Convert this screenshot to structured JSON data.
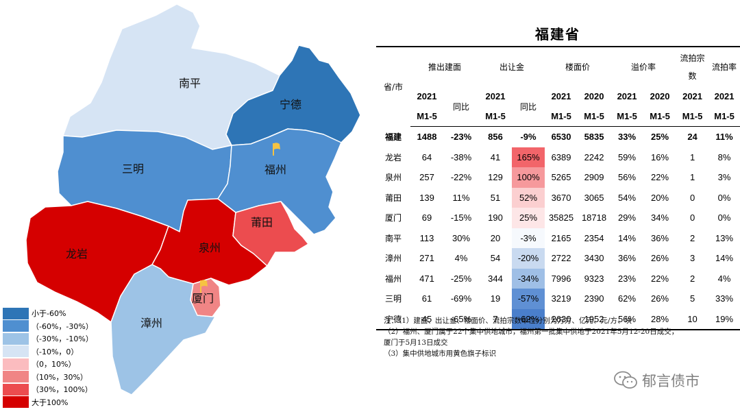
{
  "map": {
    "colors": {
      "lt_neg60": "#2e75b6",
      "neg60_neg30": "#4f8fd0",
      "neg30_neg10": "#9dc3e6",
      "neg10_0": "#d6e4f4",
      "p0_10": "#fbbcbf",
      "p10_30": "#f08585",
      "p30_100": "#ec4c4f",
      "gt100": "#d50000"
    },
    "regions": [
      {
        "name": "南平",
        "fill": "#d6e4f4"
      },
      {
        "name": "宁德",
        "fill": "#2e75b6"
      },
      {
        "name": "三明",
        "fill": "#4f8fd0"
      },
      {
        "name": "福州",
        "fill": "#4f8fd0"
      },
      {
        "name": "龙岩",
        "fill": "#d50000"
      },
      {
        "name": "泉州",
        "fill": "#d50000"
      },
      {
        "name": "莆田",
        "fill": "#ec4c4f"
      },
      {
        "name": "厦门",
        "fill": "#f08585"
      },
      {
        "name": "漳州",
        "fill": "#9dc3e6"
      }
    ],
    "flag_icon": "yellow-flag-icon",
    "flag_color": "#f6c342"
  },
  "legend": [
    {
      "label": "小于-60%",
      "color": "#2e75b6"
    },
    {
      "label": "（-60%，-30%）",
      "color": "#4f8fd0"
    },
    {
      "label": "（-30%，-10%）",
      "color": "#9dc3e6"
    },
    {
      "label": "（-10%，0）",
      "color": "#d6e4f4"
    },
    {
      "label": "（0，10%）",
      "color": "#fbbcbf"
    },
    {
      "label": "（10%，30%）",
      "color": "#f08585"
    },
    {
      "label": "（30%，100%）",
      "color": "#ec4c4f"
    },
    {
      "label": "大于100%",
      "color": "#d50000"
    }
  ],
  "table": {
    "title": "福建省",
    "header_province": "省/市",
    "groups": [
      "推出建面",
      "出让金",
      "楼面价",
      "溢价率",
      "流拍宗数",
      "流拍率"
    ],
    "subheaders": [
      "2021",
      "同比",
      "2021",
      "同比",
      "2021",
      "2020",
      "2021",
      "2020",
      "2021",
      "2021"
    ],
    "subheader_period": "M1-5",
    "rows": [
      {
        "name": "福建",
        "area": "1488",
        "area_yoy": "-23%",
        "fee": "856",
        "fee_yoy": "-9%",
        "price21": "6530",
        "price20": "5835",
        "prem21": "33%",
        "prem20": "25%",
        "failed": "24",
        "fail_rate": "11%",
        "yoy_color": "#ffffff"
      },
      {
        "name": "龙岩",
        "area": "64",
        "area_yoy": "-38%",
        "fee": "41",
        "fee_yoy": "165%",
        "price21": "6389",
        "price20": "2242",
        "prem21": "59%",
        "prem20": "16%",
        "failed": "1",
        "fail_rate": "8%",
        "yoy_color": "#f2656a"
      },
      {
        "name": "泉州",
        "area": "257",
        "area_yoy": "-22%",
        "fee": "129",
        "fee_yoy": "100%",
        "price21": "5265",
        "price20": "2909",
        "prem21": "56%",
        "prem20": "22%",
        "failed": "1",
        "fail_rate": "3%",
        "yoy_color": "#f6999c"
      },
      {
        "name": "莆田",
        "area": "139",
        "area_yoy": "11%",
        "fee": "51",
        "fee_yoy": "52%",
        "price21": "3670",
        "price20": "3065",
        "prem21": "54%",
        "prem20": "20%",
        "failed": "0",
        "fail_rate": "0%",
        "yoy_color": "#fbcfd0"
      },
      {
        "name": "厦门",
        "area": "69",
        "area_yoy": "-15%",
        "fee": "190",
        "fee_yoy": "25%",
        "price21": "35825",
        "price20": "18718",
        "prem21": "29%",
        "prem20": "34%",
        "failed": "0",
        "fail_rate": "0%",
        "yoy_color": "#fde6e7"
      },
      {
        "name": "南平",
        "area": "113",
        "area_yoy": "30%",
        "fee": "20",
        "fee_yoy": "-3%",
        "price21": "2165",
        "price20": "2354",
        "prem21": "14%",
        "prem20": "36%",
        "failed": "2",
        "fail_rate": "13%",
        "yoy_color": "#f6f9fd"
      },
      {
        "name": "漳州",
        "area": "271",
        "area_yoy": "4%",
        "fee": "54",
        "fee_yoy": "-20%",
        "price21": "2722",
        "price20": "3430",
        "prem21": "36%",
        "prem20": "26%",
        "failed": "3",
        "fail_rate": "14%",
        "yoy_color": "#c9daf0"
      },
      {
        "name": "福州",
        "area": "471",
        "area_yoy": "-25%",
        "fee": "344",
        "fee_yoy": "-34%",
        "price21": "7996",
        "price20": "9323",
        "prem21": "23%",
        "prem20": "22%",
        "failed": "2",
        "fail_rate": "4%",
        "yoy_color": "#9fbfe6"
      },
      {
        "name": "三明",
        "area": "61",
        "area_yoy": "-69%",
        "fee": "19",
        "fee_yoy": "-57%",
        "price21": "3219",
        "price20": "2390",
        "prem21": "62%",
        "prem20": "26%",
        "failed": "5",
        "fail_rate": "33%",
        "yoy_color": "#5f90d4"
      },
      {
        "name": "宁德",
        "area": "45",
        "area_yoy": "-65%",
        "fee": "7",
        "fee_yoy": "-62%",
        "price21": "2630",
        "price20": "1952",
        "prem21": "56%",
        "prem20": "28%",
        "failed": "10",
        "fail_rate": "19%",
        "yoy_color": "#4a7fcb"
      }
    ]
  },
  "notes": [
    "注：（1）建面、出让金、楼面价、流拍宗数单位分别为万方、亿元、元/方、块",
    "（2）福州、厦门属于22个集中供地城市，福州第一批集中供地于2021年5月12-20日成交，",
    "厦门于5月13日成交",
    "（3）集中供地城市用黄色旗子标识"
  ],
  "watermark": {
    "text": "郁言债市",
    "icon": "wechat-icon"
  }
}
